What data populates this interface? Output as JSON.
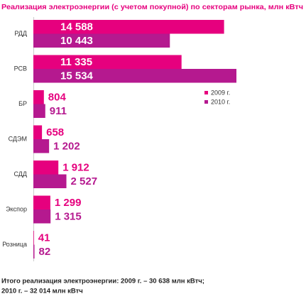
{
  "chart_data": {
    "type": "hbar",
    "title": "Реализация электроэнергии (с учетом покупной) по секторам рынка, млн кВтч",
    "categories": [
      "РДД",
      "РСВ",
      "БР",
      "СДЭМ",
      "СДД",
      "Экспор",
      "Розница"
    ],
    "series": [
      {
        "name": "2009 г.",
        "color": "#e6007e",
        "values": [
          14588,
          11335,
          804,
          658,
          1912,
          1299,
          41
        ],
        "value_labels": [
          "14 588",
          "11 335",
          "804",
          "658",
          "1 912",
          "1 299",
          "41"
        ]
      },
      {
        "name": "2010 г.",
        "color": "#b5198f",
        "values": [
          10443,
          15534,
          911,
          1202,
          2527,
          1315,
          82
        ],
        "value_labels": [
          "10 443",
          "15 534",
          "911",
          "1 202",
          "2 527",
          "1 315",
          "82"
        ]
      }
    ],
    "legend": "right",
    "footnote": [
      "Итого реализация электроэнергии: 2009 г. – 30 638 млн кВтч;",
      "2010 г. – 32 014 млн кВтч"
    ]
  }
}
